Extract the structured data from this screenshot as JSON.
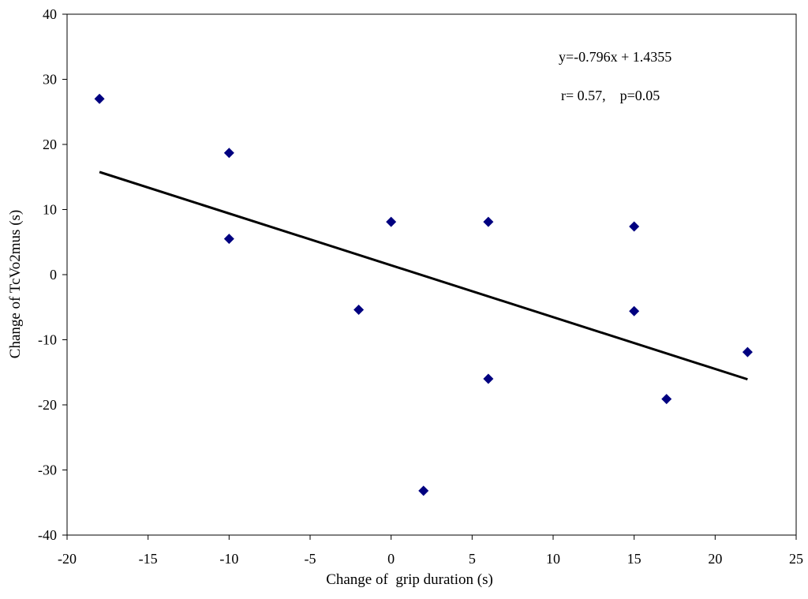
{
  "chart_data": {
    "type": "scatter",
    "title": "",
    "xlabel": "Change of  grip duration (s)",
    "ylabel": "Change of TcVo2mus (s)",
    "xlim": [
      -20,
      25
    ],
    "ylim": [
      -40,
      40
    ],
    "xticks": [
      -20,
      -15,
      -10,
      -5,
      0,
      5,
      10,
      15,
      20,
      25
    ],
    "yticks": [
      -40,
      -30,
      -20,
      -10,
      0,
      10,
      20,
      30,
      40
    ],
    "xtick_labels": [
      "-20",
      "-15",
      "-10",
      "-5",
      "0",
      "5",
      "10",
      "15",
      "20",
      "25"
    ],
    "ytick_labels": [
      "-40",
      "-30",
      "-20",
      "-10",
      "0",
      "10",
      "20",
      "30",
      "40"
    ],
    "grid": false,
    "legend": "none",
    "marker": "diamond",
    "marker_color": "#000080",
    "line_color": "#000000",
    "points": [
      {
        "x": -18,
        "y": 27
      },
      {
        "x": -10,
        "y": 18.7
      },
      {
        "x": -10,
        "y": 5.5
      },
      {
        "x": -2,
        "y": -5.4
      },
      {
        "x": 0,
        "y": 8.1
      },
      {
        "x": 2,
        "y": -33.2
      },
      {
        "x": 6,
        "y": 8.1
      },
      {
        "x": 6,
        "y": -16
      },
      {
        "x": 15,
        "y": 7.4
      },
      {
        "x": 15,
        "y": -5.6
      },
      {
        "x": 17,
        "y": -19.1
      },
      {
        "x": 22,
        "y": -11.9
      }
    ],
    "trendline": {
      "slope": -0.796,
      "intercept": 1.4355,
      "x_range": [
        -18,
        22
      ]
    },
    "annotations": [
      "y=-0.796x + 1.4355",
      "r= 0.57,    p=0.05"
    ]
  }
}
